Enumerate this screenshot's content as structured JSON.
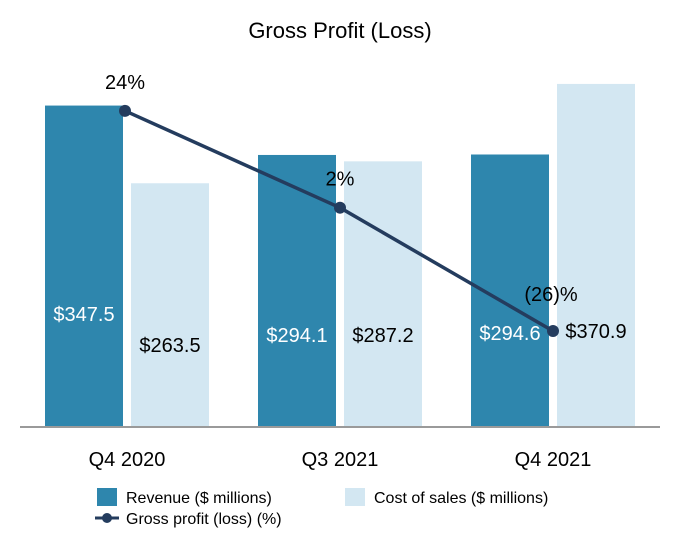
{
  "chart_data": {
    "type": "bar+line",
    "title": "Gross Profit (Loss)",
    "categories": [
      "Q4 2020",
      "Q3 2021",
      "Q4 2021"
    ],
    "series": [
      {
        "name": "Revenue ($ millions)",
        "kind": "bar",
        "color": "#2e86ad",
        "values": [
          347.5,
          294.1,
          294.6
        ],
        "labels": [
          "$347.5",
          "$294.1",
          "$294.6"
        ]
      },
      {
        "name": "Cost of sales ($ millions)",
        "kind": "bar",
        "color": "#d3e7f2",
        "values": [
          263.5,
          287.2,
          370.9
        ],
        "labels": [
          "$263.5",
          "$287.2",
          "$370.9"
        ]
      },
      {
        "name": "Gross profit (loss) (%)",
        "kind": "line",
        "color": "#243c5e",
        "values": [
          24,
          2,
          -26
        ],
        "labels": [
          "24%",
          "2%",
          "(26)%"
        ]
      }
    ],
    "bar_axis": {
      "min": 0,
      "max": 440
    },
    "line_axis": {
      "min": -36,
      "max": 36
    },
    "legend_position": "bottom",
    "grid": false
  }
}
